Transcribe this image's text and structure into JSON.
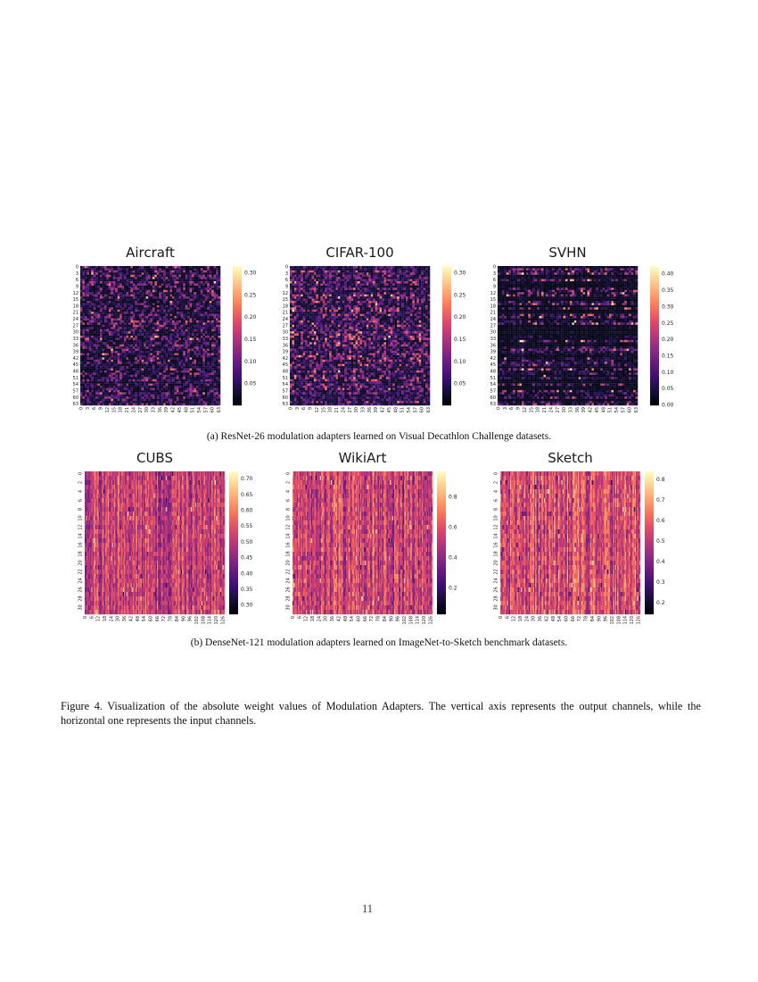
{
  "page": {
    "number": "11"
  },
  "figure": {
    "subcaption_a": "(a) ResNet-26 modulation adapters learned on Visual Decathlon Challenge datasets.",
    "subcaption_b": "(b) DenseNet-121 modulation adapters learned on ImageNet-to-Sketch benchmark datasets.",
    "caption_lines": [
      "Figure 4. Visualization of the absolute weight values of Modulation Adapters. The vertical axis represents the output channels, while the",
      "horizontal one represents the input channels."
    ]
  },
  "chart_data": [
    {
      "type": "heatmap",
      "title": "Aircraft",
      "rows": 64,
      "cols": 64,
      "x_ticks": [
        "0",
        "3",
        "6",
        "9",
        "12",
        "15",
        "18",
        "21",
        "24",
        "27",
        "30",
        "33",
        "36",
        "39",
        "42",
        "45",
        "48",
        "51",
        "54",
        "57",
        "60",
        "63"
      ],
      "y_ticks": [
        "0",
        "3",
        "6",
        "9",
        "12",
        "15",
        "18",
        "21",
        "24",
        "27",
        "30",
        "33",
        "36",
        "39",
        "42",
        "45",
        "48",
        "51",
        "54",
        "57",
        "60",
        "63"
      ],
      "colorbar_ticks": [
        "0.30",
        "0.25",
        "0.20",
        "0.15",
        "0.10",
        "0.05"
      ],
      "cbar_min": 0.002,
      "cbar_max": 0.316,
      "colormap": "magma",
      "axis_note": "vertical = output channels, horizontal = input channels",
      "texture": {
        "seed": 11,
        "mode": "sparse",
        "bg": 0.03,
        "gain": 0.52,
        "pw": 2.6,
        "spikeProb": 0.006,
        "spikeLo": 0.55,
        "spikeHi": 0.95,
        "band": 0
      }
    },
    {
      "type": "heatmap",
      "title": "CIFAR-100",
      "rows": 64,
      "cols": 64,
      "x_ticks": [
        "0",
        "3",
        "6",
        "9",
        "12",
        "15",
        "18",
        "21",
        "24",
        "27",
        "30",
        "33",
        "36",
        "39",
        "42",
        "45",
        "48",
        "51",
        "54",
        "57",
        "60",
        "63"
      ],
      "y_ticks": [
        "0",
        "3",
        "6",
        "9",
        "12",
        "15",
        "18",
        "21",
        "24",
        "27",
        "30",
        "33",
        "36",
        "39",
        "42",
        "45",
        "48",
        "51",
        "54",
        "57",
        "60",
        "63"
      ],
      "colorbar_ticks": [
        "0.30",
        "0.25",
        "0.20",
        "0.15",
        "0.10",
        "0.05"
      ],
      "cbar_min": 0.002,
      "cbar_max": 0.316,
      "colormap": "magma",
      "axis_note": "vertical = output channels, horizontal = input channels",
      "texture": {
        "seed": 23,
        "mode": "sparse",
        "bg": 0.05,
        "gain": 0.55,
        "pw": 2.2,
        "spikeProb": 0.005,
        "spikeLo": 0.55,
        "spikeHi": 0.95,
        "band": 0
      }
    },
    {
      "type": "heatmap",
      "title": "SVHN",
      "rows": 64,
      "cols": 64,
      "x_ticks": [
        "0",
        "3",
        "6",
        "9",
        "12",
        "15",
        "18",
        "21",
        "24",
        "27",
        "30",
        "33",
        "36",
        "39",
        "42",
        "45",
        "48",
        "51",
        "54",
        "57",
        "60",
        "63"
      ],
      "y_ticks": [
        "0",
        "3",
        "6",
        "9",
        "12",
        "15",
        "18",
        "21",
        "24",
        "27",
        "30",
        "33",
        "36",
        "39",
        "42",
        "45",
        "48",
        "51",
        "54",
        "57",
        "60",
        "63"
      ],
      "colorbar_ticks": [
        "0.40",
        "0.35",
        "0.30",
        "0.25",
        "0.20",
        "0.15",
        "0.10",
        "0.05",
        "0.00"
      ],
      "cbar_min": 0.0,
      "cbar_max": 0.425,
      "colormap": "magma",
      "axis_note": "vertical = output channels, horizontal = input channels",
      "texture": {
        "seed": 37,
        "mode": "sparse",
        "bg": 0.02,
        "gain": 0.85,
        "pw": 3.0,
        "spikeProb": 0.01,
        "spikeLo": 0.6,
        "spikeHi": 1.0,
        "band": 1,
        "bandProb": 0.42,
        "bandLo": 0.25,
        "bandHi": 1.0,
        "quiet": 0.05
      }
    },
    {
      "type": "heatmap",
      "title": "CUBS",
      "rows": 32,
      "cols": 128,
      "x_ticks": [
        "0",
        "6",
        "12",
        "18",
        "24",
        "30",
        "36",
        "42",
        "48",
        "54",
        "60",
        "66",
        "72",
        "78",
        "84",
        "90",
        "96",
        "102",
        "108",
        "114",
        "120",
        "126"
      ],
      "y_ticks": [
        "0",
        "2",
        "4",
        "6",
        "8",
        "10",
        "12",
        "14",
        "16",
        "18",
        "20",
        "22",
        "24",
        "26",
        "28",
        "30"
      ],
      "colorbar_ticks": [
        "0.70",
        "0.65",
        "0.60",
        "0.55",
        "0.50",
        "0.45",
        "0.40",
        "0.35",
        "0.30"
      ],
      "cbar_min": 0.272,
      "cbar_max": 0.724,
      "colormap": "magma",
      "axis_note": "vertical = output channels, horizontal = input channels",
      "texture": {
        "seed": 51,
        "mode": "dense",
        "bg": 0.54,
        "gain": 0.26,
        "colAmp": 0.16,
        "spikeProb": 0.015,
        "darkLo": 0.12,
        "darkHi": 0.3,
        "lightLo": 0.8,
        "lightHi": 0.95
      }
    },
    {
      "type": "heatmap",
      "title": "WikiArt",
      "rows": 32,
      "cols": 128,
      "x_ticks": [
        "0",
        "6",
        "12",
        "18",
        "24",
        "30",
        "36",
        "42",
        "48",
        "54",
        "60",
        "66",
        "72",
        "78",
        "84",
        "90",
        "96",
        "102",
        "108",
        "114",
        "120",
        "126"
      ],
      "y_ticks": [
        "0",
        "2",
        "4",
        "6",
        "8",
        "10",
        "12",
        "14",
        "16",
        "18",
        "20",
        "22",
        "24",
        "26",
        "28",
        "30"
      ],
      "colorbar_ticks": [
        "0.8",
        "0.6",
        "0.4",
        "0.2"
      ],
      "cbar_min": 0.03,
      "cbar_max": 0.97,
      "colormap": "magma",
      "axis_note": "vertical = output channels, horizontal = input channels",
      "texture": {
        "seed": 67,
        "mode": "dense",
        "bg": 0.55,
        "gain": 0.28,
        "colAmp": 0.16,
        "spikeProb": 0.015,
        "darkLo": 0.12,
        "darkHi": 0.3,
        "lightLo": 0.8,
        "lightHi": 0.95
      }
    },
    {
      "type": "heatmap",
      "title": "Sketch",
      "rows": 32,
      "cols": 128,
      "x_ticks": [
        "0",
        "6",
        "12",
        "18",
        "24",
        "30",
        "36",
        "42",
        "48",
        "54",
        "60",
        "66",
        "72",
        "78",
        "84",
        "90",
        "96",
        "102",
        "108",
        "114",
        "120",
        "126"
      ],
      "y_ticks": [
        "0",
        "2",
        "4",
        "6",
        "8",
        "10",
        "12",
        "14",
        "16",
        "18",
        "20",
        "22",
        "24",
        "26",
        "28",
        "30"
      ],
      "colorbar_ticks": [
        "0.8",
        "0.7",
        "0.6",
        "0.5",
        "0.4",
        "0.3",
        "0.2"
      ],
      "cbar_min": 0.145,
      "cbar_max": 0.84,
      "colormap": "magma",
      "axis_note": "vertical = output channels, horizontal = input channels",
      "texture": {
        "seed": 83,
        "mode": "dense",
        "bg": 0.58,
        "gain": 0.28,
        "colAmp": 0.18,
        "spikeProb": 0.02,
        "darkLo": 0.12,
        "darkHi": 0.3,
        "lightLo": 0.8,
        "lightHi": 0.95
      }
    }
  ]
}
